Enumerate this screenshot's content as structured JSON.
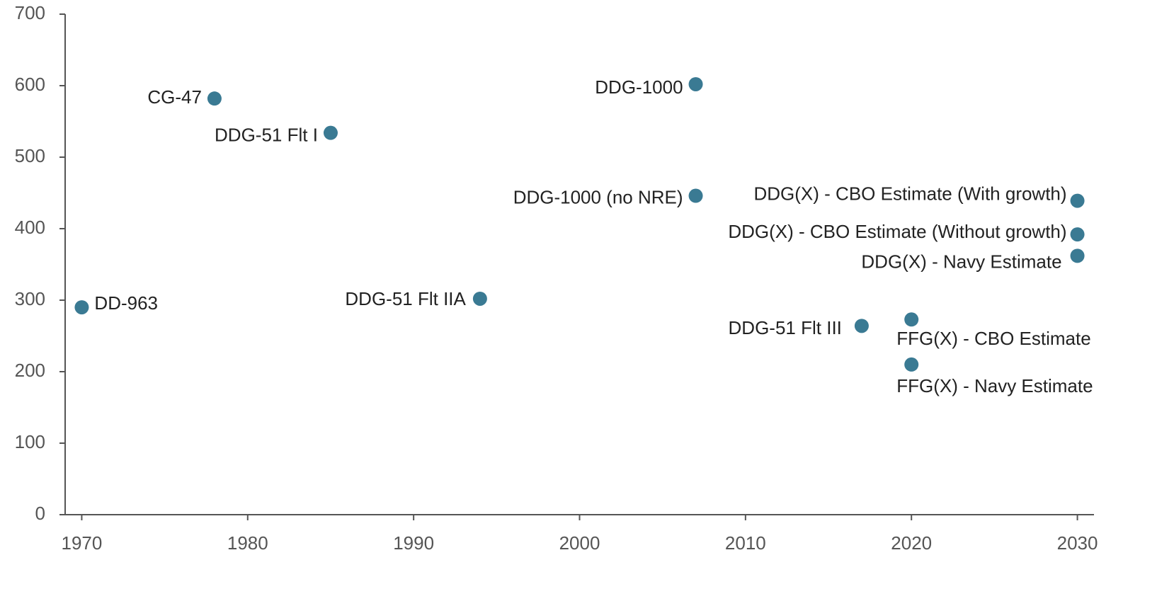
{
  "chart_data": {
    "type": "scatter",
    "labels": [
      "DD-963",
      "CG-47",
      "DDG-51 Flt I",
      "DDG-51 Flt IIA",
      "DDG-1000",
      "DDG-1000 (no NRE)",
      "DDG-51 Flt III",
      "FFG(X) - CBO Estimate",
      "FFG(X) - Navy Estimate",
      "DDG(X) - CBO Estimate (With growth)",
      "DDG(X) - CBO Estimate (Without growth)",
      "DDG(X) - Navy Estimate"
    ],
    "x": [
      1970,
      1978,
      1985,
      1994,
      2007,
      2007,
      2017,
      2020,
      2020,
      2030,
      2030,
      2030
    ],
    "values": [
      290,
      582,
      534,
      302,
      602,
      446,
      264,
      273,
      210,
      439,
      392,
      362
    ],
    "color": "#3a7a93",
    "xlim": [
      1969,
      2031
    ],
    "xticks": [
      1970,
      1980,
      1990,
      2000,
      2010,
      2020,
      2030
    ],
    "ylim": [
      0,
      700
    ],
    "yticks": [
      0,
      100,
      200,
      300,
      400,
      500,
      600,
      700
    ],
    "grid": false
  }
}
